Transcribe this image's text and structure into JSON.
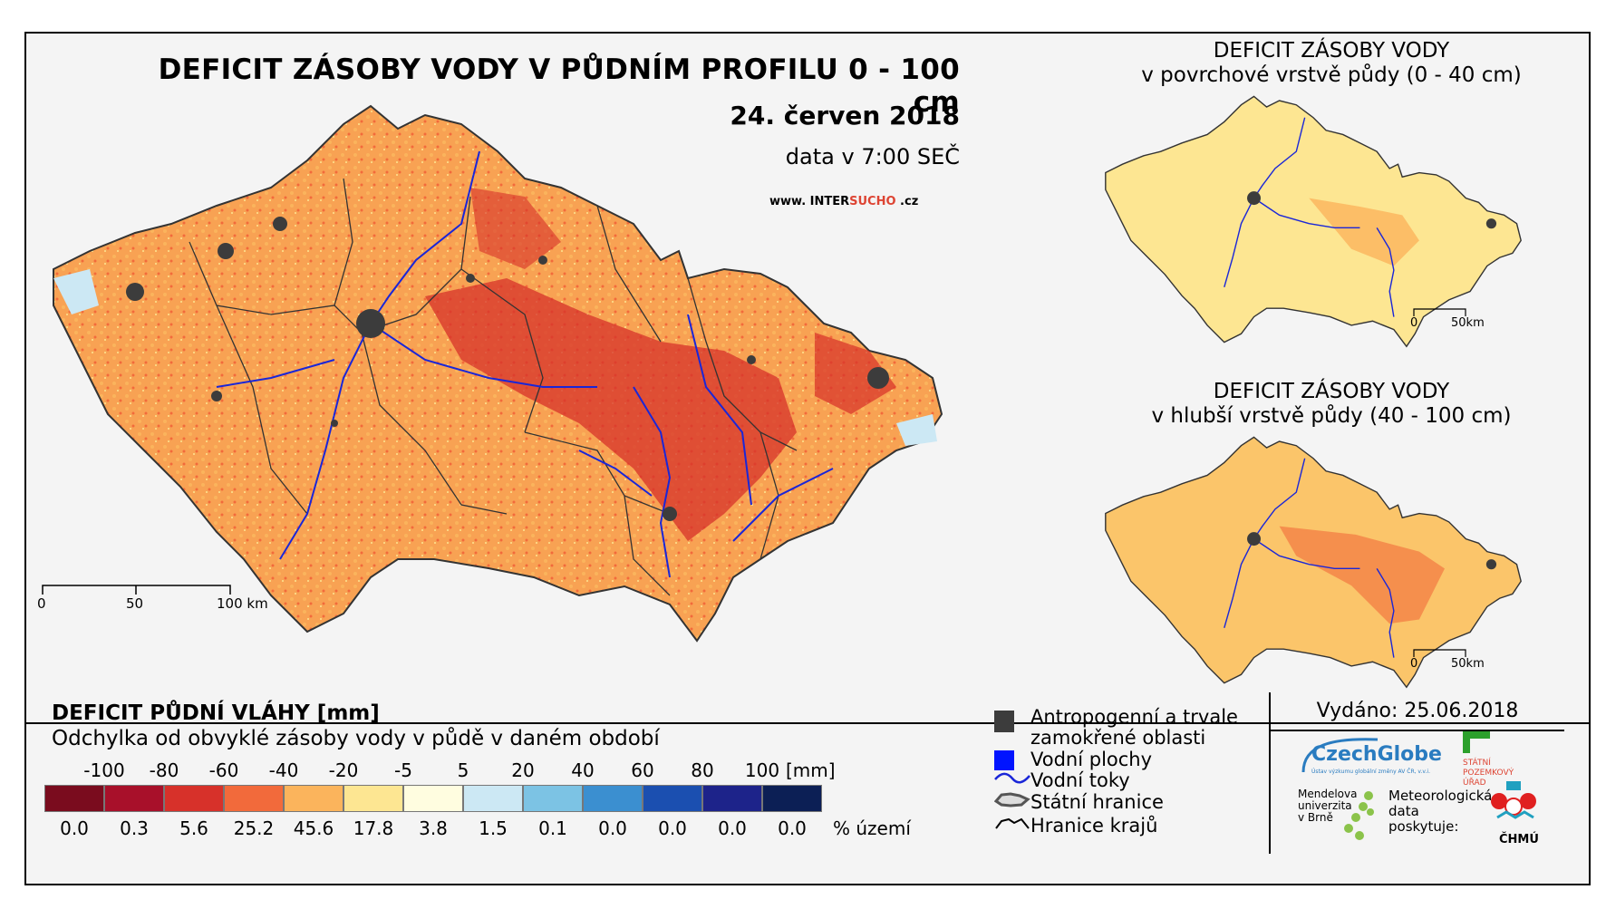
{
  "main": {
    "title": "DEFICIT ZÁSOBY VODY V PŮDNÍM PROFILU 0 - 100 cm",
    "date": "24. červen 2018",
    "time": "data v 7:00 SEČ",
    "website_prefix": "www. INTER",
    "website_highlight": "SUCHO",
    "website_suffix": " .cz",
    "scale_labels": [
      "0",
      "50",
      "100 km"
    ]
  },
  "inset_top": {
    "title_line1": "DEFICIT ZÁSOBY VODY",
    "title_line2": "v povrchové vrstvě půdy (0 - 40 cm)",
    "scale_labels": [
      "0",
      "50km"
    ]
  },
  "inset_bottom": {
    "title_line1": "DEFICIT ZÁSOBY VODY",
    "title_line2": "v hlubší vrstvě půdy (40 - 100 cm)",
    "scale_labels": [
      "0",
      "50km"
    ]
  },
  "legend": {
    "title": "DEFICIT PŮDNÍ VLÁHY [mm]",
    "subtitle": "Odchylka od obvyklé zásoby vody v půdě v daném období",
    "ticks": [
      "-100",
      "-80",
      "-60",
      "-40",
      "-20",
      "-5",
      "5",
      "20",
      "40",
      "60",
      "80",
      "100"
    ],
    "tick_unit": "[mm]",
    "classes": [
      {
        "color": "#7a0c1e",
        "percent": "0.0"
      },
      {
        "color": "#a8102a",
        "percent": "0.3"
      },
      {
        "color": "#d7312a",
        "percent": "5.6"
      },
      {
        "color": "#f26a3b",
        "percent": "25.2"
      },
      {
        "color": "#fbb45c",
        "percent": "45.6"
      },
      {
        "color": "#fde692",
        "percent": "17.8"
      },
      {
        "color": "#fffde0",
        "percent": "3.8"
      },
      {
        "color": "#cce8f4",
        "percent": "1.5"
      },
      {
        "color": "#7cc3e4",
        "percent": "0.1"
      },
      {
        "color": "#3b8fd0",
        "percent": "0.0"
      },
      {
        "color": "#1b4fb0",
        "percent": "0.0"
      },
      {
        "color": "#1d238a",
        "percent": "0.0"
      },
      {
        "color": "#0c1f55",
        "percent": "0.0"
      }
    ],
    "percent_unit": "% území"
  },
  "key": {
    "anthropogenic_line1": "Antropogenní a trvale",
    "anthropogenic_line2": "zamokřené oblasti",
    "water_bodies": "Vodní plochy",
    "rivers": "Vodní toky",
    "state_border": "Státní hranice",
    "region_border": "Hranice krajů",
    "colors": {
      "anthropogenic": "#3c3c3c",
      "water_bodies": "#0014ff",
      "rivers": "#1a26d8"
    }
  },
  "footer": {
    "issued": "Vydáno: 25.06.2018",
    "czechglobe": "CzechGlobe",
    "czechglobe_sub": "Ústav výzkumu globální změny AV ČR, v.v.i.",
    "spu_lines": [
      "STÁTNÍ",
      "POZEMKOVÝ",
      "ÚŘAD"
    ],
    "mendel_lines": [
      "Mendelova",
      "univerzita",
      "v Brně"
    ],
    "met_lines": [
      "Meteorologická",
      "data",
      "poskytuje:"
    ],
    "chmu": "ČHMÚ"
  }
}
